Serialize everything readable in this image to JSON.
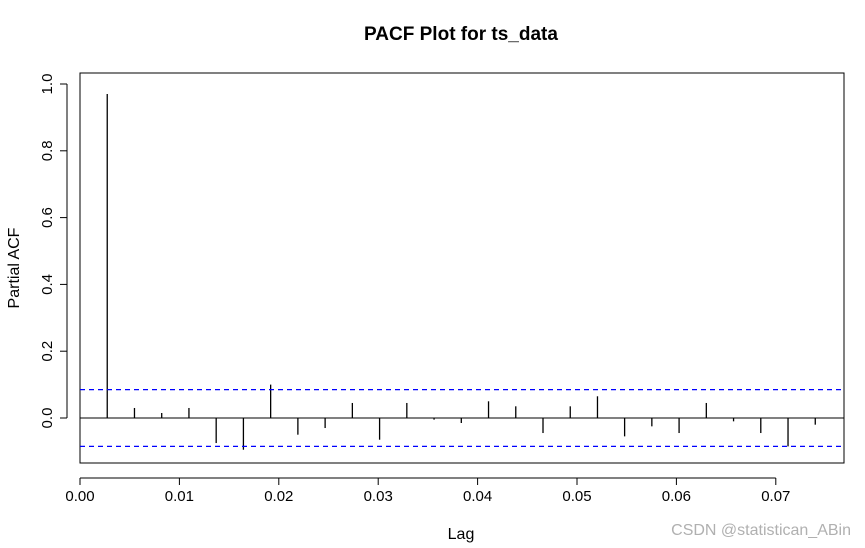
{
  "chart_data": {
    "type": "bar",
    "title": "PACF Plot for ts_data",
    "xlabel": "Lag",
    "ylabel": "Partial ACF",
    "xlim": [
      0,
      0.0765
    ],
    "ylim": [
      -0.13,
      1.0
    ],
    "x_ticks": [
      0.0,
      0.01,
      0.02,
      0.03,
      0.04,
      0.05,
      0.06,
      0.07
    ],
    "x_tick_labels": [
      "0.00",
      "0.01",
      "0.02",
      "0.03",
      "0.04",
      "0.05",
      "0.06",
      "0.07"
    ],
    "y_ticks": [
      0.0,
      0.2,
      0.4,
      0.6,
      0.8,
      1.0
    ],
    "y_tick_labels": [
      "0.0",
      "0.2",
      "0.4",
      "0.6",
      "0.8",
      "1.0"
    ],
    "confidence_bound": 0.085,
    "confidence_color": "#0000ff",
    "bar_color": "#000000",
    "x": [
      0.00274,
      0.00548,
      0.00822,
      0.01096,
      0.0137,
      0.01644,
      0.01918,
      0.02192,
      0.02466,
      0.0274,
      0.03014,
      0.03288,
      0.03562,
      0.03836,
      0.0411,
      0.04384,
      0.04658,
      0.04932,
      0.05206,
      0.05479,
      0.05753,
      0.06027,
      0.06301,
      0.06575,
      0.06849,
      0.07123,
      0.07397
    ],
    "values": [
      0.97,
      0.03,
      0.015,
      0.03,
      -0.075,
      -0.095,
      0.1,
      -0.05,
      -0.03,
      0.045,
      -0.065,
      0.045,
      -0.005,
      -0.015,
      0.05,
      0.035,
      -0.045,
      0.035,
      0.065,
      -0.055,
      -0.025,
      -0.045,
      0.045,
      -0.01,
      -0.045,
      -0.085,
      -0.02
    ]
  },
  "watermark": "CSDN @statistican_ABin"
}
